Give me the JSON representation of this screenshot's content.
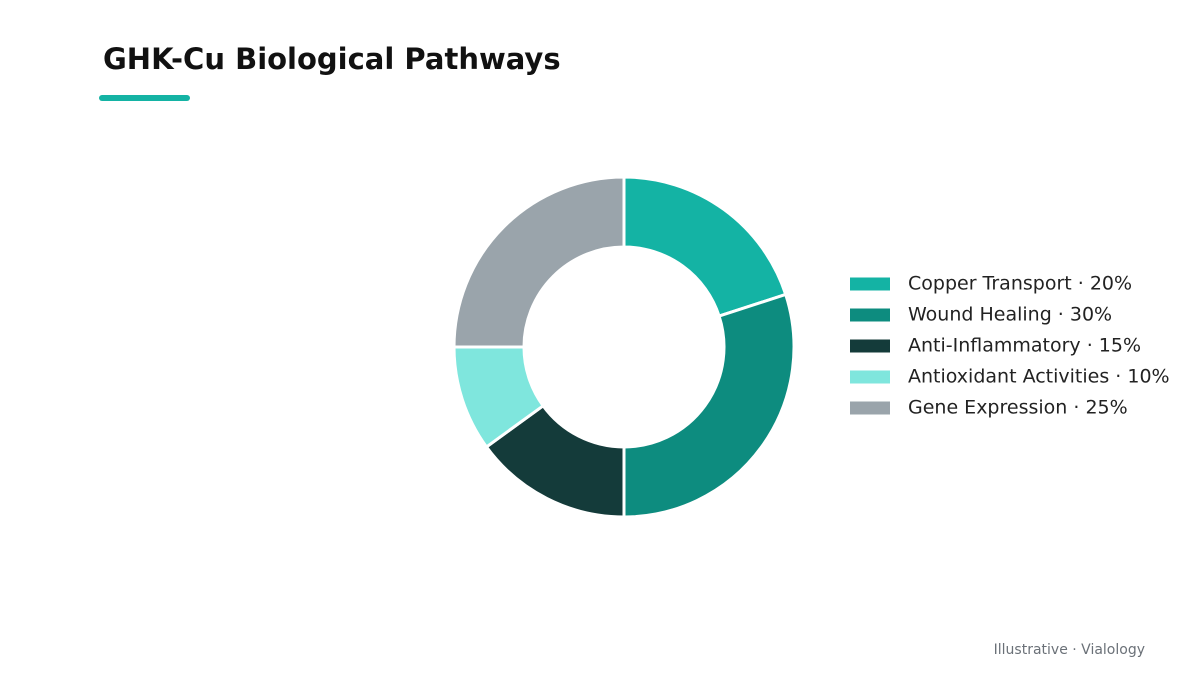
{
  "chart_data": {
    "type": "donut",
    "title": "GHK-Cu Biological Pathways",
    "legend": [
      "Copper Transport · 20%",
      "Wound Healing · 30%",
      "Anti-Inflammatory · 15%",
      "Antioxidant Activities · 10%",
      "Gene Expression · 25%"
    ],
    "values": [
      20,
      30,
      15,
      10,
      25
    ],
    "colors": [
      "#14b3a4",
      "#0d8c7f",
      "#143b3a",
      "#7fe6dd",
      "#9aa4ab"
    ],
    "legend_position": "right",
    "footer": "Illustrative · Vialology"
  }
}
